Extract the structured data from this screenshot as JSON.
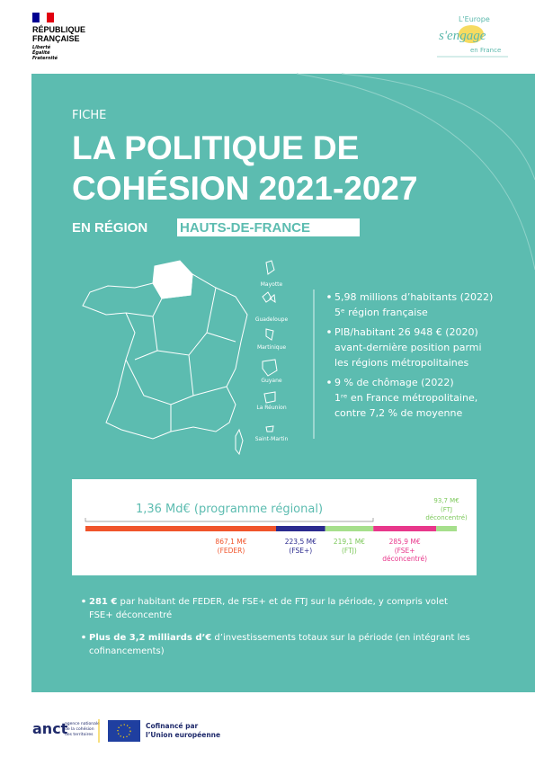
{
  "header": {
    "republique": [
      "RÉPUBLIQUE",
      "FRANÇAISE"
    ],
    "motto": [
      "Liberté",
      "Égalité",
      "Fraternité"
    ],
    "europe_logo": [
      "L'Europe",
      "s'engage",
      "en France"
    ]
  },
  "kicker": "FICHE",
  "title": [
    "LA POLITIQUE DE",
    "COHÉSION 2021-2027"
  ],
  "subtitle_prefix": "EN RÉGION",
  "region": "HAUTS-DE-FRANCE",
  "map_labels": [
    "Mayotte",
    "Guadeloupe",
    "Martinique",
    "Guyane",
    "La Réunion",
    "Saint-Martin"
  ],
  "facts": [
    [
      "5,98 millions d’habitants (2022)",
      "5ᵉ région française"
    ],
    [
      "PIB/habitant 26 948 € (2020)",
      "avant-dernière position parmi",
      "les régions métropolitaines"
    ],
    [
      "9 % de chômage (2022)",
      "1ʳᵉ en France métropolitaine,",
      "contre 7,2 % de moyenne"
    ]
  ],
  "funding": {
    "total_label": "1,36 Md€ (programme régional)",
    "segments": [
      {
        "value": 867.1,
        "value_label": "867,1 M€",
        "name": [
          "(FEDER)"
        ],
        "color": "#f0542b",
        "label_position": "below"
      },
      {
        "value": 223.5,
        "value_label": "223,5 M€",
        "name": [
          "(FSE+)"
        ],
        "color": "#2b2a8e",
        "label_position": "below"
      },
      {
        "value": 219.1,
        "value_label": "219,1 M€",
        "name": [
          "(FTJ)"
        ],
        "color": "#a6df8c",
        "label_position": "below"
      },
      {
        "value": 285.9,
        "value_label": "285,9 M€",
        "name": [
          "(FSE+",
          "déconcentré)"
        ],
        "color": "#e8378b",
        "label_position": "below"
      },
      {
        "value": 93.7,
        "value_label": "93,7 M€",
        "name": [
          "(FTJ",
          "déconcentré)"
        ],
        "color": "#a6df8c",
        "label_position": "above"
      }
    ]
  },
  "bullets": [
    {
      "bold": "281 €",
      "text": [
        " par habitant de FEDER, de FSE+ et de FTJ sur la période, y compris volet",
        "FSE+ déconcentré"
      ]
    },
    {
      "bold": "Plus de 3,2 milliards d’€",
      "text": [
        " d’investissements totaux sur la période (en intégrant les",
        "cofinancements)"
      ]
    }
  ],
  "footer": {
    "anct_logo": "anct",
    "anct_text": [
      "agence nationale",
      "de la cohésion",
      "des territoires"
    ],
    "eu_text": [
      "Cofinancé par",
      "l’Union européenne"
    ]
  }
}
